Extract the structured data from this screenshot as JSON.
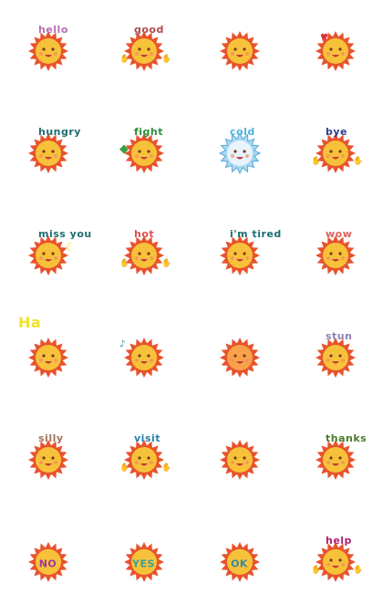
{
  "stickers": [
    {
      "label": "hello",
      "color": "#b76fb4",
      "variant": "plain"
    },
    {
      "label": "good",
      "color": "#b04a4a",
      "variant": "arms"
    },
    {
      "label": "",
      "color": "#000000",
      "variant": "plain"
    },
    {
      "label": "",
      "color": "#000000",
      "variant": "heart"
    },
    {
      "label": "hungry",
      "color": "#1e6d72",
      "variant": "bowl"
    },
    {
      "label": "fight",
      "color": "#2f8f3a",
      "variant": "flag"
    },
    {
      "label": "cold",
      "color": "#4db3e0",
      "variant": "cold"
    },
    {
      "label": "bye",
      "color": "#2f3f8f",
      "variant": "arms"
    },
    {
      "label": "miss you",
      "color": "#1e6d72",
      "variant": "moon"
    },
    {
      "label": "hot",
      "color": "#e05050",
      "variant": "arms"
    },
    {
      "label": "i'm tired",
      "color": "#1e6d72",
      "variant": "plain"
    },
    {
      "label": "wow",
      "color": "#e0605a",
      "variant": "plain"
    },
    {
      "label": "Ha",
      "color": "#f2e22a",
      "variant": "ha"
    },
    {
      "label": "",
      "color": "#000000",
      "variant": "music"
    },
    {
      "label": "",
      "color": "#000000",
      "variant": "fire"
    },
    {
      "label": "stun",
      "color": "#8f80b0",
      "variant": "plain"
    },
    {
      "label": "silly",
      "color": "#a0755a",
      "variant": "plain"
    },
    {
      "label": "visit",
      "color": "#2a7fb0",
      "variant": "arms"
    },
    {
      "label": "",
      "color": "#000000",
      "variant": "plain"
    },
    {
      "label": "thanks",
      "color": "#4a7a2a",
      "variant": "plain"
    },
    {
      "label": "NO",
      "color": "#9a3aa0",
      "variant": "badge"
    },
    {
      "label": "YES",
      "color": "#3aa0a0",
      "variant": "badge"
    },
    {
      "label": "OK",
      "color": "#3a8a9a",
      "variant": "badge"
    },
    {
      "label": "help",
      "color": "#b0206a",
      "variant": "arms"
    }
  ],
  "colors": {
    "ray": "#e8532c",
    "face": "#f7c23a",
    "cheek": "#f08a6a",
    "eye": "#7a3a1a",
    "arm": "#d872b8",
    "cold_fill": "#a8d8f0"
  }
}
